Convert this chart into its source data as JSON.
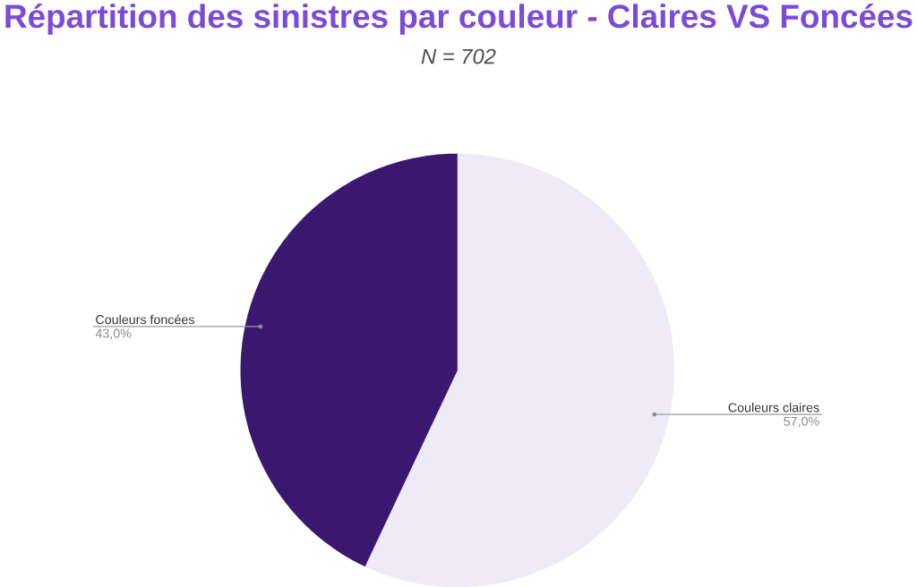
{
  "chart_data": {
    "type": "pie",
    "title": "Répartition des sinistres par couleur - Claires VS Foncées",
    "subtitle": "N = 702",
    "categories": [
      "Couleurs claires",
      "Couleurs foncées"
    ],
    "values": [
      57,
      43
    ],
    "colors": [
      "#eeeaf8",
      "#3b1870"
    ],
    "value_labels": [
      "57,0%",
      "43,0%"
    ]
  }
}
